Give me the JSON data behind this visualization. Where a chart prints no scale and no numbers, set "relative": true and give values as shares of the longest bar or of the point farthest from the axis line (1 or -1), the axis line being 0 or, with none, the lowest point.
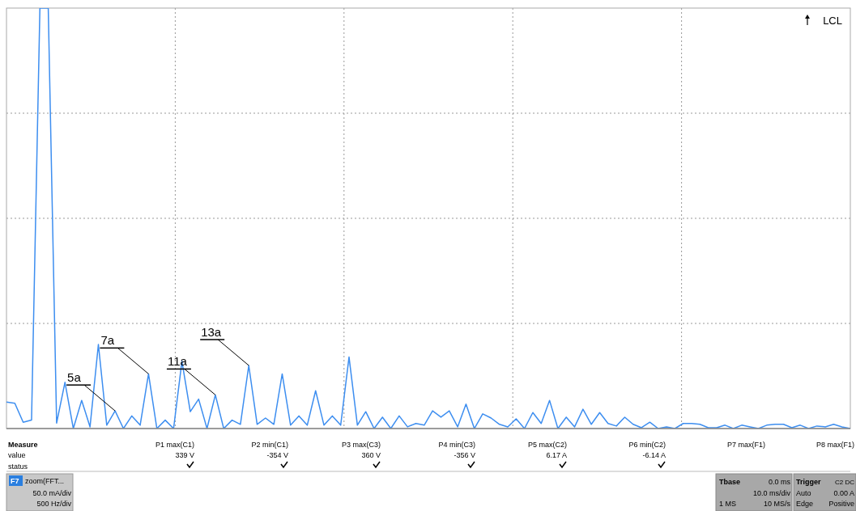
{
  "chart_data": {
    "type": "line",
    "relative": true,
    "grid": true,
    "legend": false,
    "marker": "none",
    "line_style": "solid",
    "tick_labels": false,
    "categories": [
      null,
      null,
      null,
      null,
      null,
      null,
      null,
      null,
      null,
      null,
      null,
      null,
      null,
      null,
      null,
      null,
      null,
      null,
      null,
      null,
      null,
      null,
      null,
      null,
      null,
      null,
      null,
      null,
      null,
      null,
      null,
      null,
      null,
      null,
      null,
      null,
      null,
      null,
      null,
      null,
      null,
      null,
      null,
      null,
      null,
      null,
      null,
      null,
      null,
      null,
      null,
      null,
      null,
      null,
      null,
      null,
      null,
      null,
      null,
      null,
      null,
      null,
      null,
      null,
      null,
      null,
      null,
      null,
      null,
      null,
      null,
      null,
      null,
      null,
      null,
      null,
      null,
      null,
      null,
      null,
      null,
      null,
      null,
      null,
      null,
      null,
      null,
      null,
      null,
      null,
      null,
      null,
      null,
      null,
      null,
      null,
      null,
      null,
      null,
      null,
      null,
      null
    ],
    "series": [
      {
        "color": "#3d8ef0",
        "values": [
          0.063,
          0.06,
          0.015,
          0.02,
          1,
          1,
          0.013,
          0.11,
          0,
          0.067,
          0.004,
          0.2,
          0.008,
          0.042,
          0,
          0.03,
          0.008,
          0.13,
          0,
          0.02,
          0,
          0.16,
          0.04,
          0.07,
          0,
          0.08,
          0,
          0.02,
          0.01,
          0.15,
          0.01,
          0.025,
          0.01,
          0.13,
          0.008,
          0.03,
          0.008,
          0.09,
          0.008,
          0.03,
          0.008,
          0.17,
          0.008,
          0.04,
          0,
          0.027,
          0,
          0.03,
          0.004,
          0.012,
          0.008,
          0.042,
          0.027,
          0.042,
          0.004,
          0.058,
          0,
          0.035,
          0.025,
          0.01,
          0.004,
          0.023,
          0,
          0.038,
          0.012,
          0.067,
          0,
          0.027,
          0.004,
          0.046,
          0.01,
          0.038,
          0.012,
          0.006,
          0.027,
          0.01,
          0.002,
          0.015,
          0,
          0.004,
          0,
          0.012,
          0.012,
          0.01,
          0.002,
          0.002,
          0.008,
          0,
          0.008,
          0.004,
          0,
          0.008,
          0.01,
          0.01,
          0.002,
          0.008,
          0,
          0.006,
          0.004,
          0.01,
          0.004,
          0
        ]
      }
    ],
    "annotations": [
      "5a",
      "7a",
      "11a",
      "13a",
      "LCL",
      "Measure",
      "value",
      "status",
      "P1 max(C1)",
      "339 V",
      "P2 min(C1)",
      "-354 V",
      "P3 max(C3)",
      "360 V",
      "P4 min(C3)",
      "-356 V",
      "P5 max(C2)",
      "6.17 A",
      "P6 min(C2)",
      "-6.14 A",
      "P7 max(F1)",
      "P8 max(F1)",
      "F7",
      "zoom(FFT...",
      "50.0 mA/div",
      "500 Hz/div",
      "Tbase",
      "0.0 ms",
      "10.0 ms/div",
      "1 MS",
      "10 MS/s",
      "Trigger",
      "C2 DC",
      "Auto",
      "0.00 A",
      "Edge",
      "Positive"
    ]
  }
}
